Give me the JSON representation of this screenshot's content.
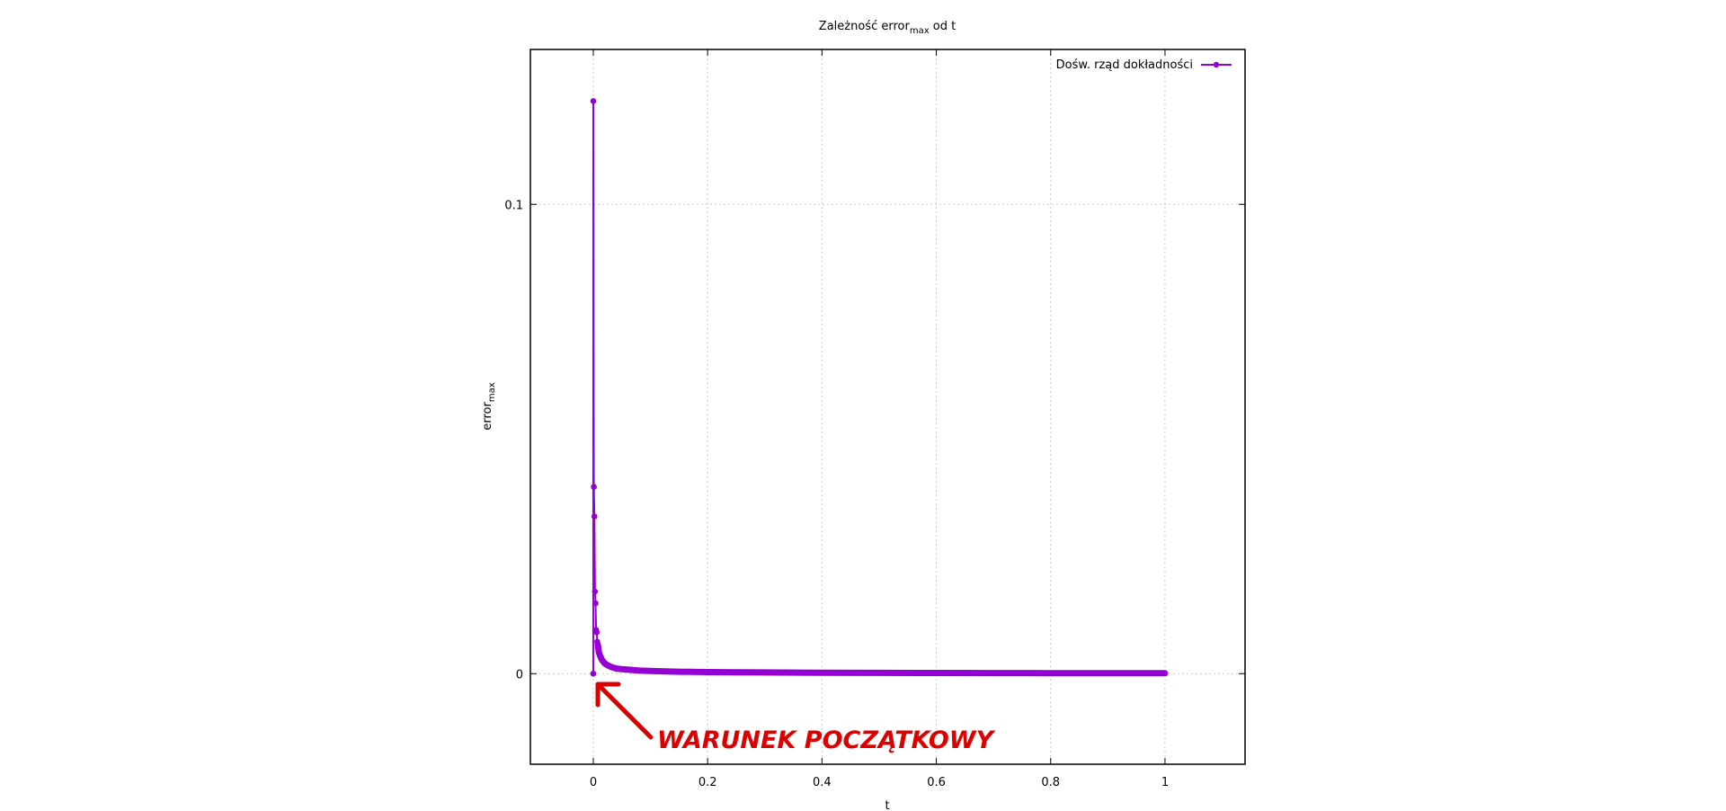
{
  "chart_data": {
    "type": "line",
    "title_main": "Zależność error",
    "title_sub": "max",
    "title_tail": " od t",
    "xlabel": "t",
    "ylabel_main": "error",
    "ylabel_sub": "max",
    "xlim": [
      -0.11,
      1.14
    ],
    "ylim": [
      -0.0193,
      0.133
    ],
    "x_ticks": [
      {
        "value": 0,
        "label": "0"
      },
      {
        "value": 0.2,
        "label": "0.2"
      },
      {
        "value": 0.4,
        "label": "0.4"
      },
      {
        "value": 0.6,
        "label": "0.6"
      },
      {
        "value": 0.8,
        "label": "0.8"
      },
      {
        "value": 1,
        "label": "1"
      }
    ],
    "y_ticks": [
      {
        "value": 0,
        "label": "0"
      },
      {
        "value": 0.1,
        "label": "0.1"
      }
    ],
    "grid": true,
    "legend_position": "top-right",
    "series": [
      {
        "name": "Dośw. rząd dokładności",
        "color": "#9400d3",
        "x": [
          0.0,
          0.001,
          0.002,
          0.003,
          0.004,
          0.005,
          0.006,
          0.007,
          0.008,
          0.009,
          0.01,
          0.012,
          0.014,
          0.016,
          0.018,
          0.02,
          0.025,
          0.03,
          0.035,
          0.04,
          0.05,
          0.06,
          0.07,
          0.08,
          0.1,
          0.12,
          0.15,
          0.2,
          0.25,
          0.3,
          0.4,
          0.5,
          0.6,
          0.7,
          0.8,
          0.9,
          1.0
        ],
        "y": [
          0.122,
          0.0398,
          0.0335,
          0.0175,
          0.015,
          0.0093,
          0.0088,
          0.0068,
          0.0062,
          0.0052,
          0.0045,
          0.0038,
          0.0032,
          0.0028,
          0.0025,
          0.0022,
          0.0018,
          0.0015,
          0.0013,
          0.0011,
          0.00095,
          0.00085,
          0.00075,
          0.00068,
          0.00058,
          0.0005,
          0.00042,
          0.00034,
          0.00029,
          0.00025,
          0.0002,
          0.00016,
          0.00014,
          0.00012,
          0.0001,
          9e-05,
          8e-05
        ],
        "markers": [
          {
            "x": 0.0,
            "y": 0.122
          },
          {
            "x": 0.001,
            "y": 0.0398
          },
          {
            "x": 0.002,
            "y": 0.0335
          },
          {
            "x": 0.003,
            "y": 0.0175
          },
          {
            "x": 0.004,
            "y": 0.015
          },
          {
            "x": 0.005,
            "y": 0.0093
          },
          {
            "x": 0.006,
            "y": 0.0088
          },
          {
            "x": 0.007,
            "y": 0.0068
          },
          {
            "x": 0.008,
            "y": 0.0062
          },
          {
            "x": 0.0,
            "y": 0.0
          }
        ]
      }
    ],
    "annotations": [
      {
        "text": "WARUNEK POCZĄTKOWY",
        "color": "#dd0000",
        "arrow_to": {
          "x": 0.008,
          "y": -0.002
        }
      }
    ]
  }
}
